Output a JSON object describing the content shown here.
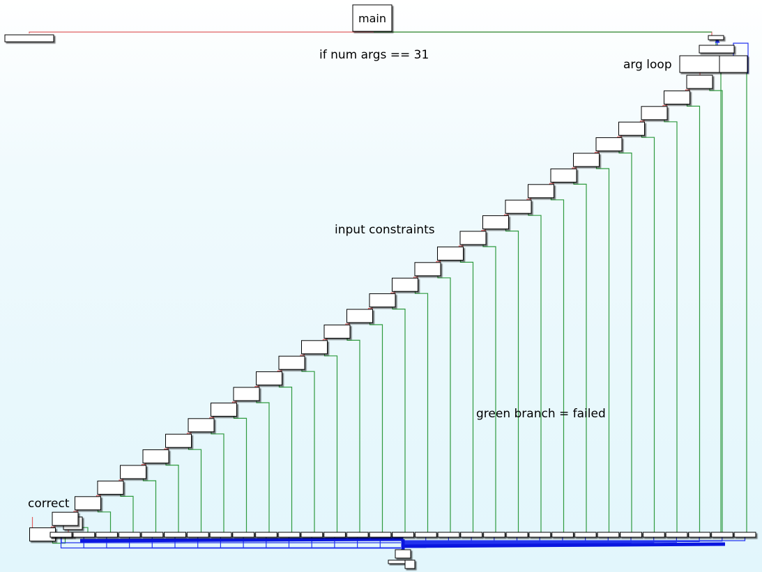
{
  "diagram": {
    "main_block_label": "main",
    "annotations": {
      "arg_count_check": "if num args == 31",
      "arg_loop": "arg loop",
      "input_constraints": "input constraints",
      "failed_branch": "green branch = failed",
      "correct": "correct"
    },
    "constraint_check_count": 30,
    "edge_colors": {
      "failed_branch": "#2e9a3e",
      "taken_branch": "#e06060",
      "unconditional_jump": "#2233ee"
    }
  }
}
